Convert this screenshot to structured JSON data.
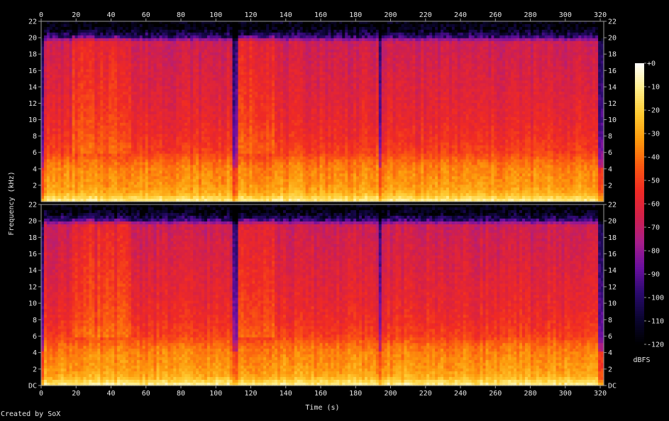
{
  "chart_data": {
    "type": "heatmap",
    "title": "",
    "xlabel": "Time (s)",
    "ylabel": "Frequency (kHz)",
    "x_ticks": [
      "0",
      "20",
      "40",
      "60",
      "80",
      "100",
      "120",
      "140",
      "160",
      "180",
      "200",
      "220",
      "240",
      "260",
      "280",
      "300",
      "320"
    ],
    "xlim": [
      0,
      322
    ],
    "channels": [
      {
        "name": "",
        "y_ticks": [
          "2",
          "4",
          "6",
          "8",
          "10",
          "12",
          "14",
          "16",
          "18",
          "20",
          "22"
        ],
        "ylim": [
          0,
          22
        ]
      },
      {
        "name": "",
        "y_ticks": [
          "DC",
          "2",
          "4",
          "6",
          "8",
          "10",
          "12",
          "14",
          "16",
          "18",
          "20",
          "22"
        ],
        "ylim": [
          0,
          22
        ]
      }
    ],
    "colorbar": {
      "label": "dBFS",
      "ticks": [
        "+0",
        "-10",
        "-20",
        "-30",
        "-40",
        "-50",
        "-60",
        "-70",
        "-80",
        "-90",
        "-100",
        "-110",
        "-120"
      ],
      "range": [
        -120,
        0
      ],
      "colors": [
        "#000000",
        "#0a0530",
        "#2a0a6e",
        "#6a0fa0",
        "#a81d8a",
        "#d2204a",
        "#f02a24",
        "#fb5a10",
        "#fd9a0c",
        "#feca30",
        "#ffee8a",
        "#ffffff"
      ]
    },
    "level_profile": {
      "freq_khz": [
        0,
        0.5,
        1,
        2,
        3,
        4,
        5,
        6,
        8,
        10,
        12,
        14,
        16,
        18,
        19.5,
        20,
        21,
        22
      ],
      "dbfs": [
        -10,
        -18,
        -28,
        -33,
        -35,
        -37,
        -42,
        -50,
        -55,
        -58,
        -60,
        -62,
        -64,
        -66,
        -68,
        -90,
        -110,
        -115
      ]
    },
    "quiet_intervals_s": [
      [
        0,
        2
      ],
      [
        110,
        112
      ],
      [
        193,
        195
      ],
      [
        318,
        322
      ]
    ],
    "bright_intervals_s": [
      [
        18,
        30
      ],
      [
        33,
        51
      ],
      [
        112,
        134
      ]
    ]
  },
  "footer": "Created by SoX"
}
